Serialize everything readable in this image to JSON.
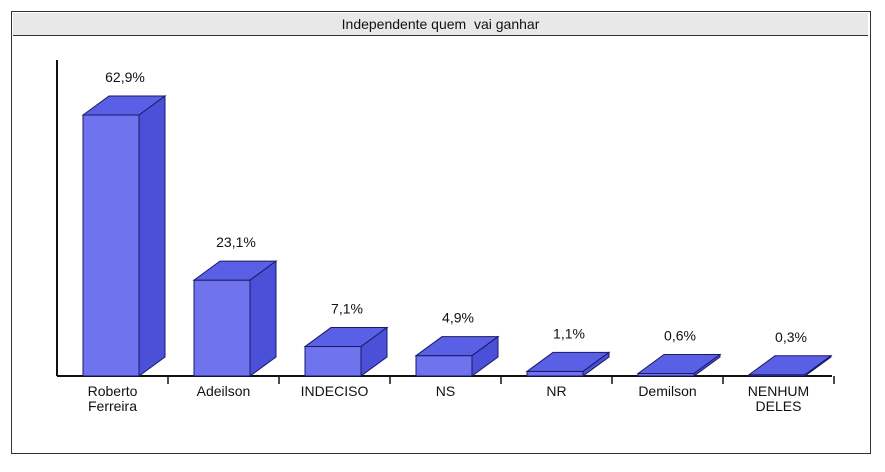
{
  "chart_data": {
    "type": "bar",
    "title": "Independente quem  vai ganhar",
    "categories": [
      [
        "Roberto",
        "Ferreira"
      ],
      [
        "Adeilson"
      ],
      [
        "INDECISO"
      ],
      [
        "NS"
      ],
      [
        "NR"
      ],
      [
        "Demilson"
      ],
      [
        "NENHUM",
        "DELES"
      ]
    ],
    "values": [
      62.9,
      23.1,
      7.1,
      4.9,
      1.1,
      0.6,
      0.3
    ],
    "data_labels": [
      "62,9%",
      "23,1%",
      "7,1%",
      "4,9%",
      "1,1%",
      "0,6%",
      "0,3%"
    ],
    "ylim": [
      0,
      62.9
    ],
    "grid": false,
    "legend": "none",
    "style": "3d",
    "colors": {
      "front": "#6f74ee",
      "top": "#5a60e6",
      "side": "#4a50d8",
      "edge": "#1a1a66"
    }
  }
}
